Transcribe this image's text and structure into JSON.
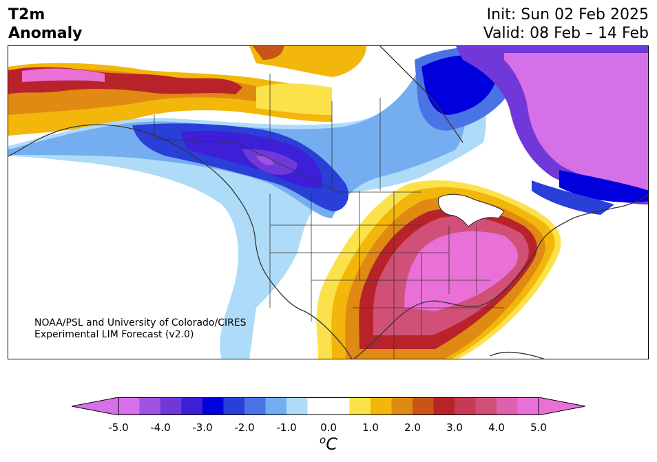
{
  "title": {
    "left_line1": "T2m",
    "left_line2": "Anomaly",
    "init": "Init: Sun 02 Feb 2025",
    "valid": "Valid: 08 Feb – 14 Feb"
  },
  "credit": {
    "line1": "NOAA/PSL and University of Colorado/CIRES",
    "line2": "Experimental LIM Forecast (v2.0)"
  },
  "colorbar": {
    "unit_sup": "o",
    "unit": "C",
    "ticks": [
      "-5.0",
      "-4.0",
      "-3.0",
      "-2.0",
      "-1.0",
      "0.0",
      "1.0",
      "2.0",
      "3.0",
      "4.0",
      "5.0"
    ],
    "bin_colors": [
      "#d670e8",
      "#a052e0",
      "#7038d8",
      "#3c1fd6",
      "#0000dd",
      "#2a3ed8",
      "#4a74e6",
      "#74aef0",
      "#aedcf8",
      "#ffffff",
      "#ffffff",
      "#fce24a",
      "#f2b70a",
      "#e08a14",
      "#c85418",
      "#b8232a",
      "#c53a55",
      "#d05078",
      "#e060b0",
      "#e870d6"
    ],
    "low_extend_color": "#d670e8",
    "high_extend_color": "#e870d6"
  }
}
